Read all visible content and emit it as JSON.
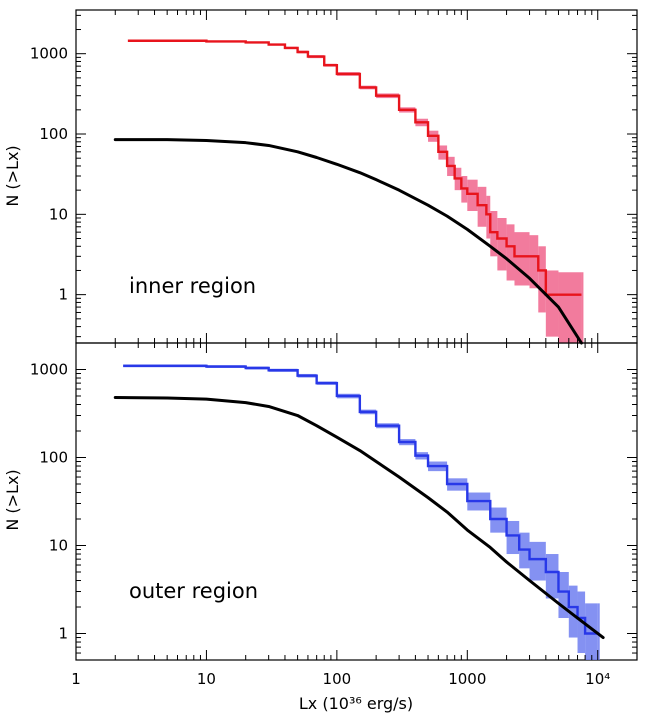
{
  "chart_data": [
    {
      "type": "line",
      "panel": "top",
      "title": "",
      "annotation": "inner region",
      "xlabel": "",
      "ylabel": "N (>Lx)",
      "xscale": "log",
      "yscale": "log",
      "xlim": [
        1,
        20000
      ],
      "ylim": [
        0.25,
        3500
      ],
      "xticks": [
        1,
        10,
        100,
        1000,
        10000
      ],
      "xticklabels_shown": false,
      "yticks": [
        1,
        10,
        100,
        1000
      ],
      "yticklabels": [
        "1",
        "10",
        "100",
        "1000"
      ],
      "grid": false,
      "legend": "none",
      "series": [
        {
          "color": "#e8141c",
          "band_color": "#f0648c",
          "style": "step-with-band",
          "x": [
            2.5,
            10,
            20,
            30,
            40,
            50,
            60,
            80,
            100,
            150,
            200,
            300,
            400,
            500,
            600,
            700,
            800,
            900,
            1000,
            1200,
            1400,
            1500,
            1700,
            2000,
            2300,
            3000,
            3500,
            4000,
            5000,
            7500
          ],
          "y": [
            1450,
            1420,
            1380,
            1300,
            1180,
            1050,
            920,
            720,
            560,
            380,
            300,
            200,
            140,
            95,
            60,
            40,
            28,
            21,
            18,
            13,
            10,
            6,
            5,
            4,
            3,
            3,
            2,
            1,
            1,
            1
          ],
          "band_low": [
            1400,
            1380,
            1340,
            1260,
            1140,
            1010,
            880,
            690,
            530,
            360,
            280,
            185,
            125,
            80,
            48,
            30,
            20,
            14,
            11,
            7,
            5,
            3,
            2,
            1.5,
            1.3,
            1.2,
            0.6,
            0.3,
            0.25,
            0.25
          ],
          "band_high": [
            1500,
            1460,
            1420,
            1340,
            1220,
            1090,
            960,
            750,
            590,
            400,
            320,
            215,
            155,
            110,
            72,
            52,
            38,
            30,
            27,
            22,
            17,
            11,
            9,
            7.5,
            6,
            5.5,
            4,
            2,
            1.9,
            1.9
          ]
        },
        {
          "color": "#000000",
          "style": "line",
          "x": [
            2,
            5,
            10,
            20,
            30,
            50,
            70,
            100,
            150,
            200,
            300,
            500,
            700,
            1000,
            1500,
            2000,
            3000,
            5000,
            7500
          ],
          "y": [
            85,
            85,
            83,
            78,
            72,
            60,
            51,
            42,
            33,
            27,
            20,
            13,
            9.5,
            6.5,
            4,
            2.8,
            1.6,
            0.7,
            0.25
          ]
        }
      ]
    },
    {
      "type": "line",
      "panel": "bottom",
      "title": "",
      "annotation": "outer region",
      "xlabel": "Lx (10³⁶ erg/s)",
      "ylabel": "N (>Lx)",
      "xscale": "log",
      "yscale": "log",
      "xlim": [
        1,
        20000
      ],
      "ylim": [
        0.5,
        2000
      ],
      "xticks": [
        1,
        10,
        100,
        1000,
        10000
      ],
      "xticklabels": [
        "1",
        "10",
        "100",
        "1000",
        "10⁴"
      ],
      "yticks": [
        1,
        10,
        100,
        1000
      ],
      "yticklabels": [
        "1",
        "10",
        "100",
        "1000"
      ],
      "grid": false,
      "legend": "none",
      "series": [
        {
          "color": "#2838e8",
          "band_color": "#6e7ef0",
          "style": "step-with-band",
          "x": [
            2.3,
            10,
            20,
            30,
            50,
            70,
            100,
            150,
            200,
            300,
            400,
            500,
            700,
            1000,
            1500,
            2000,
            2500,
            3000,
            4000,
            5000,
            6000,
            7000,
            8000,
            10000
          ],
          "y": [
            1100,
            1080,
            1040,
            980,
            850,
            700,
            500,
            330,
            230,
            150,
            105,
            80,
            50,
            32,
            20,
            13,
            9,
            7,
            5,
            3,
            2,
            1.5,
            1,
            1
          ],
          "band_low": [
            1060,
            1040,
            1000,
            940,
            810,
            670,
            470,
            310,
            215,
            138,
            95,
            70,
            42,
            25,
            14,
            8,
            5.5,
            4,
            2.5,
            1.5,
            0.9,
            0.6,
            0.5,
            0.5
          ],
          "band_high": [
            1140,
            1120,
            1080,
            1020,
            890,
            730,
            530,
            350,
            245,
            162,
            115,
            90,
            58,
            40,
            27,
            19,
            14,
            11,
            8,
            5,
            3.5,
            3,
            2.2,
            2.2
          ]
        },
        {
          "color": "#000000",
          "style": "line",
          "x": [
            2,
            5,
            10,
            20,
            30,
            50,
            70,
            100,
            150,
            200,
            300,
            500,
            700,
            1000,
            1500,
            2000,
            3000,
            5000,
            7000,
            11000
          ],
          "y": [
            480,
            475,
            460,
            420,
            380,
            300,
            230,
            170,
            120,
            90,
            60,
            35,
            24,
            15,
            9.5,
            6.5,
            4,
            2.2,
            1.5,
            0.9
          ]
        }
      ]
    }
  ]
}
